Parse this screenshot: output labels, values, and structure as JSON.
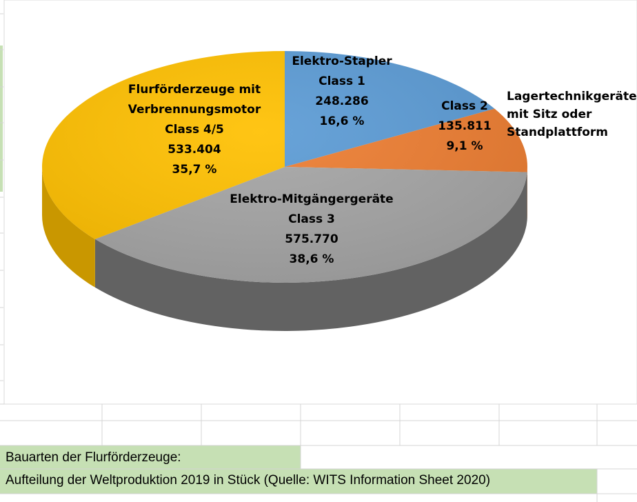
{
  "sheet": {
    "caption_line1": "Bauarten der Flurförderzeuge:",
    "caption_line2": "Aufteilung der Weltproduktion 2019 in Stück (Quelle: WITS Information Sheet 2020)",
    "caption_fill": "#c6e0b4",
    "gridline_color": "#d4d4d4"
  },
  "chart_data": {
    "type": "pie",
    "style": "3d",
    "start": "top, clockwise",
    "units": "Stück",
    "slices": [
      {
        "lines": [
          "Elektro-Stapler",
          "Class 1"
        ],
        "value": 248286,
        "value_text": "248.286",
        "percent_text": "16,6 %",
        "color": "#5b9bd5",
        "side_color": "#41719c"
      },
      {
        "lines": [
          "Class 2"
        ],
        "value": 135811,
        "value_text": "135.811",
        "percent_text": "9,1 %",
        "color": "#ed7d31",
        "side_color": "#ae5a21"
      },
      {
        "lines": [
          "Elektro-Mitgängergeräte",
          "Class 3"
        ],
        "value": 575770,
        "value_text": "575.770",
        "percent_text": "38,6 %",
        "color": "#a5a5a5",
        "side_color": "#626262"
      },
      {
        "lines": [
          "Flurförderzeuge mit",
          "Verbrennungsmotor",
          "Class 4/5"
        ],
        "value": 533404,
        "value_text": "533.404",
        "percent_text": "35,7 %",
        "color": "#ffc000",
        "side_color": "#c99700"
      }
    ],
    "outside_label": {
      "lines": [
        "Lagertechnikgeräte",
        "mit Sitz oder",
        "Standplattform"
      ]
    }
  }
}
